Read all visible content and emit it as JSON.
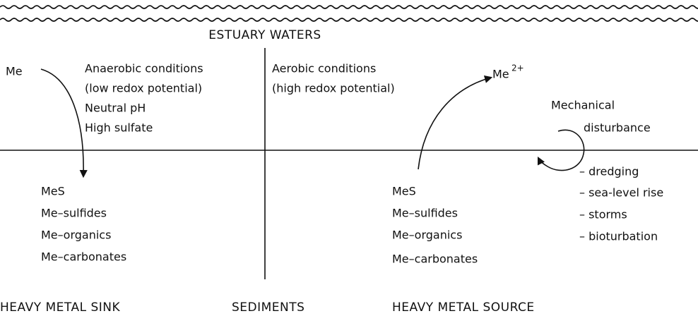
{
  "header": {
    "title": "ESTUARY WATERS"
  },
  "sink": {
    "species": "Me",
    "conditions": [
      "Anaerobic conditions",
      "(low redox potential)",
      "Neutral pH",
      "High sulfate"
    ],
    "sediment_forms": [
      "MeS",
      "Me–sulfides",
      "Me–organics",
      "Me–carbonates"
    ],
    "label": "HEAVY METAL SINK"
  },
  "center_label": "SEDIMENTS",
  "source": {
    "species": "Me",
    "charge": "2+",
    "conditions": [
      "Aerobic conditions",
      "(high redox potential)"
    ],
    "sediment_forms": [
      "MeS",
      "Me–sulfides",
      "Me–organics",
      "Me–carbonates"
    ],
    "label": "HEAVY METAL SOURCE"
  },
  "disturbance": {
    "title": [
      "Mechanical",
      "disturbance"
    ],
    "causes": [
      "– dredging",
      "– sea-level rise",
      "– storms",
      "– bioturbation"
    ]
  }
}
